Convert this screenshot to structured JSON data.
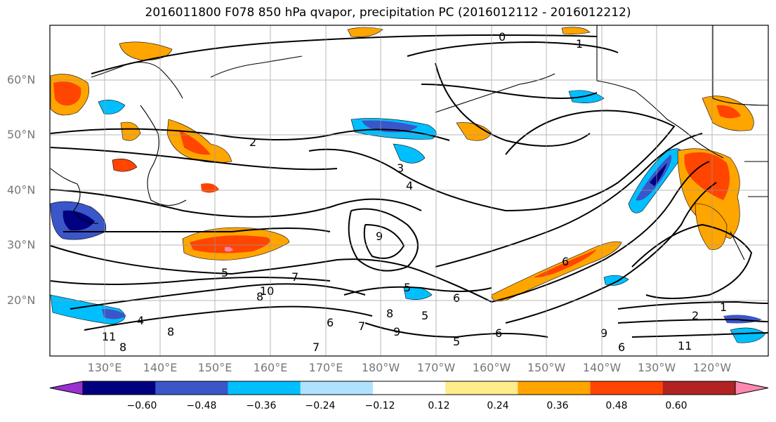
{
  "title": "2016011800 F078 850 hPa qvapor, precipitation PC (2016012112 - 2016012212)",
  "lat_labels": [
    "60°N",
    "50°N",
    "40°N",
    "30°N",
    "20°N"
  ],
  "lon_labels": [
    "130°E",
    "140°E",
    "150°E",
    "160°E",
    "170°E",
    "180°W",
    "170°W",
    "160°W",
    "150°W",
    "140°W",
    "130°W",
    "120°W"
  ],
  "colorbar": {
    "colors": [
      "#9b30d0",
      "#000080",
      "#3a56c8",
      "#00bfff",
      "#b0e2ff",
      "#ffffff",
      "#ffec8b",
      "#ffa500",
      "#ff4500",
      "#b22222",
      "#ff88b0"
    ],
    "tick_labels": [
      "−0.60",
      "−0.48",
      "−0.36",
      "−0.24",
      "−0.12",
      "0.12",
      "0.24",
      "0.36",
      "0.48",
      "0.60"
    ]
  },
  "contour_labels": [
    "0",
    "1",
    "2",
    "3",
    "4",
    "5",
    "6",
    "7",
    "8",
    "9",
    "10",
    "11",
    "1",
    "2",
    "5",
    "6",
    "5",
    "6",
    "7",
    "8",
    "9",
    "8",
    "6",
    "7",
    "8",
    "5",
    "9",
    "6",
    "4",
    "11"
  ]
}
